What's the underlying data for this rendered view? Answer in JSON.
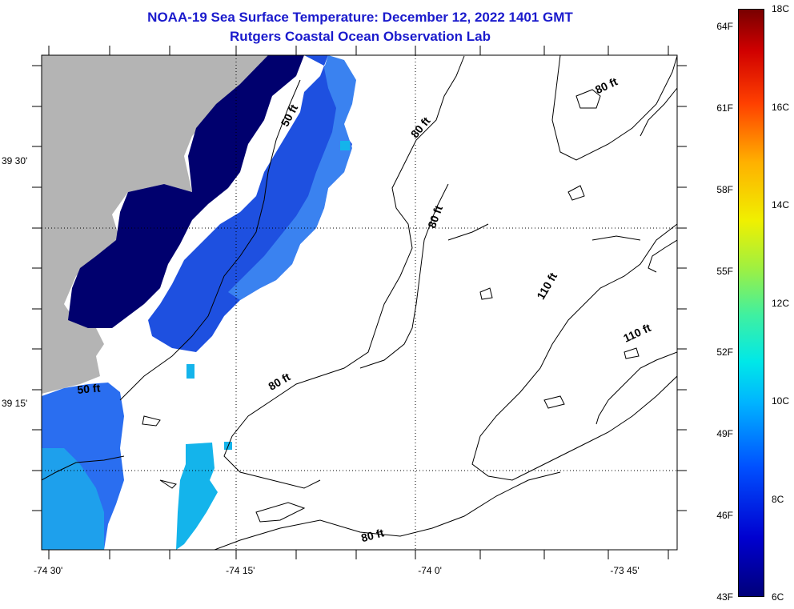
{
  "title": {
    "line1": "NOAA-19 Sea Surface Temperature:  December 12, 2022 1401 GMT",
    "line2": "Rutgers Coastal Ocean Observation Lab"
  },
  "axes": {
    "x_ticks": [
      {
        "label": "-74 30'",
        "lon": -74.5
      },
      {
        "label": "-74 15'",
        "lon": -74.25
      },
      {
        "label": "-74 0'",
        "lon": -74.0
      },
      {
        "label": "-73 45'",
        "lon": -73.75
      }
    ],
    "y_ticks": [
      {
        "label": "39 30'",
        "lat": 39.5
      },
      {
        "label": "39 15'",
        "lat": 39.25
      }
    ],
    "lon_range": [
      -74.5167,
      -73.69
    ],
    "lat_range": [
      39.1,
      39.61
    ]
  },
  "contour_labels": [
    {
      "text": "50 ft",
      "lon": -74.19,
      "lat": 39.546,
      "rotate": -62
    },
    {
      "text": "50 ft",
      "lon": -74.455,
      "lat": 39.262,
      "rotate": -5
    },
    {
      "text": "80 ft",
      "lon": -74.02,
      "lat": 39.533,
      "rotate": -50
    },
    {
      "text": "80 ft",
      "lon": -74.0,
      "lat": 39.442,
      "rotate": -70
    },
    {
      "text": "80 ft",
      "lon": -74.205,
      "lat": 39.27,
      "rotate": -30
    },
    {
      "text": "80 ft",
      "lon": -74.085,
      "lat": 39.111,
      "rotate": -15
    },
    {
      "text": "80 ft",
      "lon": -73.78,
      "lat": 39.575,
      "rotate": -25
    },
    {
      "text": "110 ft",
      "lon": -73.855,
      "lat": 39.37,
      "rotate": -60
    },
    {
      "text": "110 ft",
      "lon": -73.74,
      "lat": 39.32,
      "rotate": -25
    }
  ],
  "colorbar": {
    "f_labels": [
      "64F",
      "61F",
      "58F",
      "55F",
      "52F",
      "49F",
      "46F",
      "43F"
    ],
    "c_labels": [
      "18C",
      "16C",
      "14C",
      "12C",
      "10C",
      "8C",
      "6C"
    ],
    "colors": {
      "land": "#b4b4b4",
      "deep": "#00006e",
      "blue": "#1e46dc",
      "mid": "#2f78ee",
      "cyan": "#14b4eb",
      "water_nodata": "#ffffff"
    }
  }
}
